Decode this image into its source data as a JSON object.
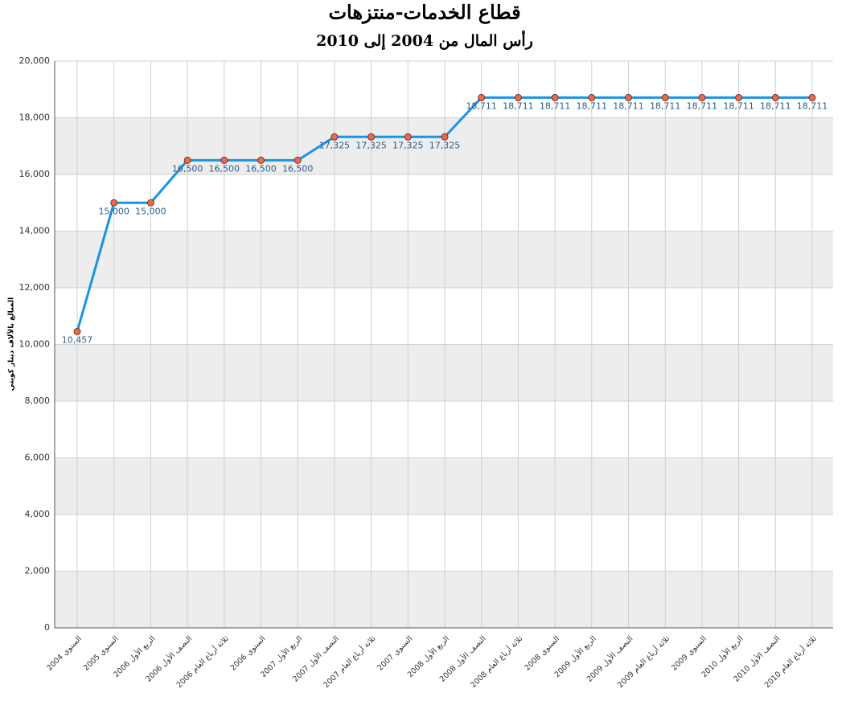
{
  "chart_data": {
    "type": "line",
    "title": "قطاع الخدمات-منتزهات",
    "subtitle": "رأس المال من 2004 إلى 2010",
    "ylabel": "المبالغ بالآلاف دينار كويتي",
    "categories": [
      "السنوي 2004",
      "السنوي 2005",
      "الربع الأول 2006",
      "النصف الأول 2006",
      "ثلاثة أرباع العام 2006",
      "السنوي 2006",
      "الربع الأول 2007",
      "النصف الأول 2007",
      "ثلاثة أرباع العام 2007",
      "السنوي 2007",
      "الربع الأول 2008",
      "النصف الأول 2008",
      "ثلاثة أرباع العام 2008",
      "السنوي 2008",
      "الربع الأول 2009",
      "النصف الأول 2009",
      "ثلاثة أرباع العام 2009",
      "السنوي 2009",
      "الربع الأول 2010",
      "النصف الأول 2010",
      "ثلاثة أرباع العام 2010"
    ],
    "values": [
      10457,
      15000,
      15000,
      16500,
      16500,
      16500,
      16500,
      17325,
      17325,
      17325,
      17325,
      18711,
      18711,
      18711,
      18711,
      18711,
      18711,
      18711,
      18711,
      18711,
      18711
    ],
    "value_labels": [
      "10,457",
      "15,000",
      "15,000",
      "16,500",
      "16,500",
      "16,500",
      "16,500",
      "17,325",
      "17,325",
      "17,325",
      "17,325",
      "18,711",
      "18,711",
      "18,711",
      "18,711",
      "18,711",
      "18,711",
      "18,711",
      "18,711",
      "18,711",
      "18,711"
    ],
    "color": "#1a93e8",
    "marker_color": "#ee6a4d",
    "ylim": [
      0,
      20000
    ],
    "yticks": [
      0,
      {
        "value": 2000,
        "label": "2,000"
      },
      {
        "value": 4000,
        "label": "4,000"
      },
      {
        "value": 6000,
        "label": "6,000"
      },
      {
        "value": 8000,
        "label": "8,000"
      },
      {
        "value": 10000,
        "label": "10,000"
      },
      {
        "value": 12000,
        "label": "12,000"
      },
      {
        "value": 14000,
        "label": "14,000"
      },
      {
        "value": 16000,
        "label": "16,000"
      },
      {
        "value": 18000,
        "label": "18,000"
      },
      {
        "value": 20000,
        "label": "20,000"
      }
    ],
    "grid": true
  }
}
